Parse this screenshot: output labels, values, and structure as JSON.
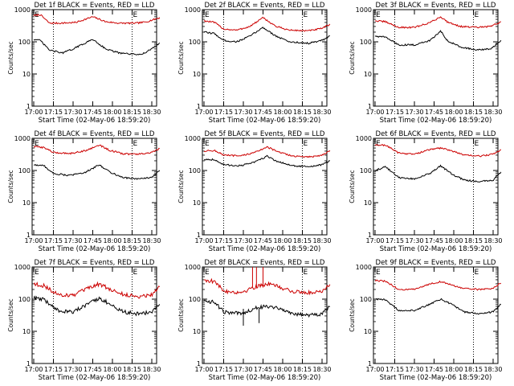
{
  "chart_data": [
    {
      "type": "line",
      "title": "Det 1f BLACK = Events, RED = LLD",
      "xlabel": "Start Time (02-May-06 18:59:20)",
      "ylabel": "Counts/sec",
      "yscale": "log",
      "ylim": [
        1,
        1000
      ],
      "x_ticks": [
        "17:00",
        "17:15",
        "17:30",
        "17:45",
        "18:00",
        "18:15",
        "18:30"
      ],
      "y_ticks": [
        "1",
        "10",
        "100",
        "1000"
      ],
      "markers": [
        "E",
        "E"
      ],
      "series": [
        {
          "color": "#cc0000",
          "profile": [
            [
              0,
              650
            ],
            [
              5,
              700
            ],
            [
              12,
              380
            ],
            [
              20,
              380
            ],
            [
              32,
              400
            ],
            [
              45,
              600
            ],
            [
              55,
              420
            ],
            [
              65,
              380
            ],
            [
              78,
              380
            ],
            [
              85,
              410
            ],
            [
              96,
              560
            ]
          ]
        },
        {
          "color": "#000000",
          "profile": [
            [
              0,
              120
            ],
            [
              5,
              110
            ],
            [
              12,
              55
            ],
            [
              22,
              45
            ],
            [
              30,
              60
            ],
            [
              45,
              120
            ],
            [
              55,
              60
            ],
            [
              65,
              45
            ],
            [
              78,
              40
            ],
            [
              85,
              45
            ],
            [
              96,
              90
            ]
          ]
        }
      ]
    },
    {
      "type": "line",
      "title": "Det 2f BLACK = Events, RED = LLD",
      "xlabel": "Start Time (02-May-06 18:59:20)",
      "ylabel": "Counts/sec",
      "yscale": "log",
      "ylim": [
        1,
        1000
      ],
      "x_ticks": [
        "17:00",
        "17:15",
        "17:30",
        "17:45",
        "18:00",
        "18:15",
        "18:30"
      ],
      "y_ticks": [
        "1",
        "10",
        "100",
        "1000"
      ],
      "markers": [
        "E",
        "E"
      ],
      "series": [
        {
          "color": "#cc0000",
          "profile": [
            [
              0,
              450
            ],
            [
              8,
              400
            ],
            [
              15,
              250
            ],
            [
              25,
              230
            ],
            [
              35,
              300
            ],
            [
              45,
              560
            ],
            [
              55,
              300
            ],
            [
              65,
              230
            ],
            [
              80,
              220
            ],
            [
              90,
              260
            ],
            [
              96,
              350
            ]
          ]
        },
        {
          "color": "#000000",
          "profile": [
            [
              0,
              200
            ],
            [
              8,
              180
            ],
            [
              15,
              110
            ],
            [
              25,
              100
            ],
            [
              35,
              150
            ],
            [
              45,
              280
            ],
            [
              55,
              150
            ],
            [
              65,
              100
            ],
            [
              80,
              90
            ],
            [
              90,
              110
            ],
            [
              96,
              150
            ]
          ]
        }
      ]
    },
    {
      "type": "line",
      "title": "Det 3f BLACK = Events, RED = LLD",
      "xlabel": "Start Time (02-May-06 18:59:20)",
      "ylabel": "Counts/sec",
      "yscale": "log",
      "ylim": [
        1,
        1000
      ],
      "x_ticks": [
        "17:00",
        "17:15",
        "17:30",
        "17:45",
        "18:00",
        "18:15",
        "18:30"
      ],
      "y_ticks": [
        "1",
        "10",
        "100",
        "1000"
      ],
      "markers": [
        "E",
        "E"
      ],
      "series": [
        {
          "color": "#cc0000",
          "profile": [
            [
              0,
              450
            ],
            [
              8,
              420
            ],
            [
              18,
              280
            ],
            [
              30,
              280
            ],
            [
              42,
              400
            ],
            [
              50,
              600
            ],
            [
              55,
              420
            ],
            [
              65,
              300
            ],
            [
              78,
              280
            ],
            [
              88,
              300
            ],
            [
              96,
              420
            ]
          ]
        },
        {
          "color": "#000000",
          "profile": [
            [
              0,
              150
            ],
            [
              8,
              140
            ],
            [
              18,
              80
            ],
            [
              30,
              80
            ],
            [
              42,
              110
            ],
            [
              50,
              220
            ],
            [
              55,
              110
            ],
            [
              65,
              70
            ],
            [
              78,
              55
            ],
            [
              88,
              60
            ],
            [
              96,
              110
            ]
          ]
        }
      ]
    },
    {
      "type": "line",
      "title": "Det 4f BLACK = Events, RED = LLD",
      "xlabel": "Start Time (02-May-06 18:59:20)",
      "ylabel": "Counts/sec",
      "yscale": "log",
      "ylim": [
        1,
        1000
      ],
      "x_ticks": [
        "17:00",
        "17:15",
        "17:30",
        "17:45",
        "18:00",
        "18:15",
        "18:30"
      ],
      "y_ticks": [
        "1",
        "10",
        "100",
        "1000"
      ],
      "markers": [
        "E",
        "E"
      ],
      "series": [
        {
          "color": "#cc0000",
          "profile": [
            [
              0,
              550
            ],
            [
              8,
              520
            ],
            [
              15,
              360
            ],
            [
              28,
              340
            ],
            [
              40,
              420
            ],
            [
              50,
              620
            ],
            [
              58,
              420
            ],
            [
              68,
              330
            ],
            [
              80,
              320
            ],
            [
              90,
              360
            ],
            [
              96,
              480
            ]
          ]
        },
        {
          "color": "#000000",
          "profile": [
            [
              0,
              150
            ],
            [
              8,
              140
            ],
            [
              15,
              80
            ],
            [
              28,
              70
            ],
            [
              40,
              90
            ],
            [
              50,
              150
            ],
            [
              58,
              90
            ],
            [
              68,
              60
            ],
            [
              80,
              55
            ],
            [
              90,
              60
            ],
            [
              96,
              100
            ]
          ]
        }
      ]
    },
    {
      "type": "line",
      "title": "Det 5f BLACK = Events, RED = LLD",
      "xlabel": "Start Time (02-May-06 18:59:20)",
      "ylabel": "Counts/sec",
      "yscale": "log",
      "ylim": [
        1,
        1000
      ],
      "x_ticks": [
        "17:00",
        "17:15",
        "17:30",
        "17:45",
        "18:00",
        "18:15",
        "18:30"
      ],
      "y_ticks": [
        "1",
        "10",
        "100",
        "1000"
      ],
      "markers": [
        "E",
        "E"
      ],
      "series": [
        {
          "color": "#cc0000",
          "profile": [
            [
              0,
              400
            ],
            [
              8,
              420
            ],
            [
              15,
              300
            ],
            [
              28,
              280
            ],
            [
              40,
              380
            ],
            [
              48,
              550
            ],
            [
              56,
              380
            ],
            [
              68,
              280
            ],
            [
              80,
              260
            ],
            [
              90,
              300
            ],
            [
              96,
              420
            ]
          ]
        },
        {
          "color": "#000000",
          "profile": [
            [
              0,
              220
            ],
            [
              8,
              220
            ],
            [
              15,
              150
            ],
            [
              28,
              140
            ],
            [
              40,
              190
            ],
            [
              48,
              280
            ],
            [
              56,
              190
            ],
            [
              68,
              140
            ],
            [
              80,
              130
            ],
            [
              90,
              150
            ],
            [
              96,
              200
            ]
          ]
        }
      ]
    },
    {
      "type": "line",
      "title": "Det 6f BLACK = Events, RED = LLD",
      "xlabel": "Start Time (02-May-06 18:59:20)",
      "ylabel": "Counts/sec",
      "yscale": "log",
      "ylim": [
        1,
        1000
      ],
      "x_ticks": [
        "17:00",
        "17:15",
        "17:30",
        "17:45",
        "18:00",
        "18:15",
        "18:30"
      ],
      "y_ticks": [
        "1",
        "10",
        "100",
        "1000"
      ],
      "markers": [
        "E",
        "E"
      ],
      "series": [
        {
          "color": "#cc0000",
          "profile": [
            [
              0,
              600
            ],
            [
              8,
              620
            ],
            [
              18,
              350
            ],
            [
              30,
              320
            ],
            [
              42,
              450
            ],
            [
              50,
              500
            ],
            [
              58,
              420
            ],
            [
              68,
              300
            ],
            [
              80,
              280
            ],
            [
              90,
              320
            ],
            [
              96,
              450
            ]
          ]
        },
        {
          "color": "#000000",
          "profile": [
            [
              0,
              100
            ],
            [
              8,
              130
            ],
            [
              18,
              60
            ],
            [
              30,
              55
            ],
            [
              42,
              80
            ],
            [
              50,
              140
            ],
            [
              58,
              80
            ],
            [
              68,
              50
            ],
            [
              80,
              45
            ],
            [
              90,
              50
            ],
            [
              96,
              90
            ]
          ]
        }
      ]
    },
    {
      "type": "line",
      "title": "Det 7f BLACK = Events, RED = LLD",
      "xlabel": "Start Time (02-May-06 18:59:20)",
      "ylabel": "Counts/sec",
      "yscale": "log",
      "ylim": [
        1,
        1000
      ],
      "x_ticks": [
        "17:00",
        "17:15",
        "17:30",
        "17:45",
        "18:00",
        "18:15",
        "18:30"
      ],
      "y_ticks": [
        "1",
        "10",
        "100",
        "1000"
      ],
      "markers": [
        "E",
        "E"
      ],
      "series": [
        {
          "color": "#cc0000",
          "profile": [
            [
              0,
              300
            ],
            [
              8,
              260
            ],
            [
              18,
              140
            ],
            [
              30,
              130
            ],
            [
              42,
              220
            ],
            [
              50,
              300
            ],
            [
              58,
              200
            ],
            [
              68,
              140
            ],
            [
              80,
              120
            ],
            [
              90,
              140
            ],
            [
              96,
              250
            ]
          ]
        },
        {
          "color": "#000000",
          "profile": [
            [
              0,
              110
            ],
            [
              8,
              95
            ],
            [
              18,
              45
            ],
            [
              30,
              40
            ],
            [
              42,
              70
            ],
            [
              50,
              110
            ],
            [
              58,
              70
            ],
            [
              68,
              40
            ],
            [
              80,
              35
            ],
            [
              90,
              40
            ],
            [
              96,
              70
            ]
          ]
        }
      ]
    },
    {
      "type": "line",
      "title": "Det 8f BLACK = Events, RED = LLD",
      "xlabel": "Start Time (02-May-06 18:59:20)",
      "ylabel": "Counts/sec",
      "yscale": "log",
      "ylim": [
        1,
        1000
      ],
      "x_ticks": [
        "17:00",
        "17:15",
        "17:30",
        "17:45",
        "18:00",
        "18:15",
        "18:30"
      ],
      "y_ticks": [
        "1",
        "10",
        "100",
        "1000"
      ],
      "markers": [
        "E",
        "E"
      ],
      "series": [
        {
          "color": "#cc0000",
          "profile": [
            [
              0,
              400
            ],
            [
              8,
              350
            ],
            [
              15,
              180
            ],
            [
              28,
              160
            ],
            [
              40,
              250
            ],
            [
              48,
              300
            ],
            [
              56,
              250
            ],
            [
              68,
              170
            ],
            [
              80,
              160
            ],
            [
              90,
              180
            ],
            [
              96,
              300
            ]
          ]
        },
        {
          "color": "#000000",
          "profile": [
            [
              0,
              90
            ],
            [
              8,
              80
            ],
            [
              15,
              40
            ],
            [
              28,
              35
            ],
            [
              40,
              55
            ],
            [
              48,
              60
            ],
            [
              56,
              55
            ],
            [
              68,
              35
            ],
            [
              80,
              32
            ],
            [
              90,
              35
            ],
            [
              96,
              60
            ]
          ]
        }
      ]
    },
    {
      "type": "line",
      "title": "Det 9f BLACK = Events, RED = LLD",
      "xlabel": "Start Time (02-May-06 18:59:20)",
      "ylabel": "Counts/sec",
      "yscale": "log",
      "ylim": [
        1,
        1000
      ],
      "x_ticks": [
        "17:00",
        "17:15",
        "17:30",
        "17:45",
        "18:00",
        "18:15",
        "18:30"
      ],
      "y_ticks": [
        "1",
        "10",
        "100",
        "1000"
      ],
      "markers": [
        "E",
        "E"
      ],
      "series": [
        {
          "color": "#cc0000",
          "profile": [
            [
              0,
              380
            ],
            [
              8,
              360
            ],
            [
              18,
              200
            ],
            [
              30,
              200
            ],
            [
              42,
              300
            ],
            [
              50,
              350
            ],
            [
              58,
              280
            ],
            [
              68,
              210
            ],
            [
              80,
              200
            ],
            [
              90,
              220
            ],
            [
              96,
              320
            ]
          ]
        },
        {
          "color": "#000000",
          "profile": [
            [
              0,
              100
            ],
            [
              8,
              95
            ],
            [
              18,
              45
            ],
            [
              30,
              45
            ],
            [
              42,
              70
            ],
            [
              50,
              100
            ],
            [
              58,
              70
            ],
            [
              68,
              40
            ],
            [
              80,
              35
            ],
            [
              90,
              40
            ],
            [
              96,
              70
            ]
          ]
        }
      ]
    }
  ]
}
